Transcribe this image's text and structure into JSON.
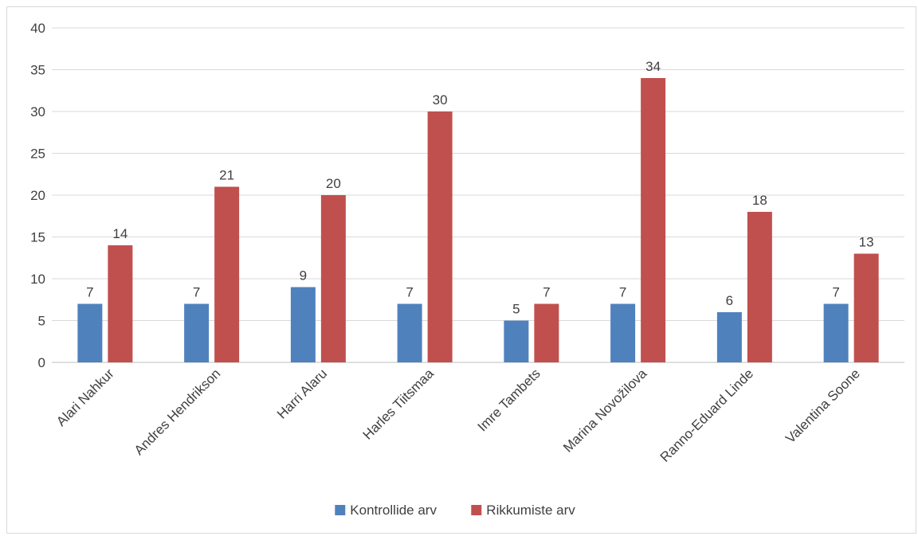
{
  "chart_data": {
    "type": "bar",
    "title": "",
    "xlabel": "",
    "ylabel": "",
    "ylim": [
      0,
      40
    ],
    "yticks": [
      0,
      5,
      10,
      15,
      20,
      25,
      30,
      35,
      40
    ],
    "grid": true,
    "legend_position": "bottom",
    "categories": [
      "Alari Nahkur",
      "Andres Hendrikson",
      "Harri Alaru",
      "Harles Tiitsmaa",
      "Imre Tambets",
      "Marina Novožilova",
      "Ranno-Eduard Linde",
      "Valentina Soone"
    ],
    "series": [
      {
        "name": "Kontrollide arv",
        "color": "#4f81bd",
        "values": [
          7,
          7,
          9,
          7,
          5,
          7,
          6,
          7
        ]
      },
      {
        "name": "Rikkumiste arv",
        "color": "#c0504d",
        "values": [
          14,
          21,
          20,
          30,
          7,
          34,
          18,
          13
        ]
      }
    ]
  }
}
